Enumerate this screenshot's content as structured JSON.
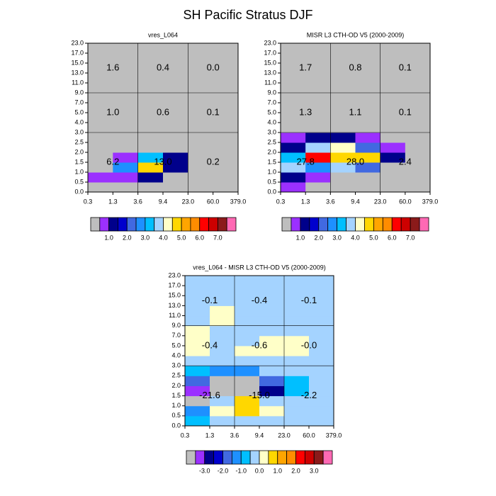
{
  "title": "SH Pacific Stratus DJF",
  "chart_data": [
    {
      "type": "heatmap",
      "title": "vres_L064",
      "xticks": [
        0.3,
        1.3,
        3.6,
        9.4,
        {
          "value": 23,
          "label": "23.0"
        },
        {
          "value": 60,
          "label": "60.0"
        },
        {
          "value": 379,
          "label": "379.0"
        }
      ],
      "yticks": [
        {
          "value": 0,
          "label": "0.0"
        },
        0.5,
        {
          "value": 1,
          "label": "1.0"
        },
        1.5,
        {
          "value": 2,
          "label": "2.0"
        },
        2.5,
        {
          "value": 3,
          "label": "3.0"
        },
        {
          "value": 4,
          "label": "4.0"
        },
        {
          "value": 5,
          "label": "5.0"
        },
        {
          "value": 7,
          "label": "7.0"
        },
        {
          "value": 9,
          "label": "9.0"
        },
        {
          "value": 11,
          "label": "11.0"
        },
        {
          "value": 13,
          "label": "13.0"
        },
        {
          "value": 15,
          "label": "15.0"
        },
        {
          "value": 17,
          "label": "17.0"
        },
        {
          "value": 23,
          "label": "23.0"
        }
      ],
      "values": [
        [
          0,
          0,
          0,
          0,
          0,
          0
        ],
        [
          0.75,
          0.75,
          1.25,
          0,
          0,
          0
        ],
        [
          0,
          2.75,
          4.75,
          1.25,
          0,
          0
        ],
        [
          0,
          0.75,
          3.25,
          1.25,
          0,
          0
        ],
        [
          0,
          0,
          0,
          0,
          0,
          0
        ],
        [
          0,
          0,
          0,
          0,
          0,
          0
        ],
        [
          0,
          0,
          0,
          0,
          0,
          0
        ],
        [
          0,
          0,
          0,
          0,
          0,
          0
        ],
        [
          0,
          0,
          0,
          0,
          0,
          0
        ],
        [
          0,
          0,
          0,
          0,
          0,
          0
        ],
        [
          0,
          0,
          0,
          0,
          0,
          0
        ],
        [
          0,
          0,
          0,
          0,
          0,
          0
        ],
        [
          0,
          0,
          0,
          0,
          0,
          0
        ],
        [
          0,
          0,
          0,
          0,
          0,
          0
        ],
        [
          0,
          0,
          0,
          0,
          0,
          0
        ]
      ],
      "block_values": [
        [
          {
            "value": 6.2,
            "label": "6.2"
          },
          {
            "value": 13,
            "label": "13.0"
          },
          {
            "value": 0.2,
            "label": "0.2"
          }
        ],
        [
          {
            "value": 1,
            "label": "1.0"
          },
          {
            "value": 0.6,
            "label": "0.6"
          },
          {
            "value": 0.1,
            "label": "0.1"
          }
        ],
        [
          {
            "value": 1.6,
            "label": "1.6"
          },
          {
            "value": 0.4,
            "label": "0.4"
          },
          {
            "value": 0,
            "label": "0.0"
          }
        ]
      ],
      "colorbar": {
        "colors": [
          "#bebebe",
          "#9b30ff",
          "#00008b",
          "#0000cd",
          "#4169e1",
          "#1e90ff",
          "#00bfff",
          "#a4d3ff",
          "#ffffc8",
          "#ffd700",
          "#ffa500",
          "#ff8c00",
          "#ff0000",
          "#cd0000",
          "#8b1a1a",
          "#ff69b4"
        ],
        "levels": [
          0.5,
          1,
          1.5,
          2,
          2.5,
          3,
          3.5,
          4,
          4.5,
          5,
          5.5,
          6,
          6.5,
          7,
          7.5
        ],
        "ticks": [
          {
            "value": 1,
            "label": "1.0"
          },
          {
            "value": 2,
            "label": "2.0"
          },
          {
            "value": 3,
            "label": "3.0"
          },
          {
            "value": 4,
            "label": "4.0"
          },
          {
            "value": 5,
            "label": "5.0"
          },
          {
            "value": 6,
            "label": "6.0"
          },
          {
            "value": 7,
            "label": "7.0"
          }
        ]
      }
    },
    {
      "type": "heatmap",
      "title": "MISR L3 CTH-OD V5 (2000-2009)",
      "xticks": [
        0.3,
        1.3,
        3.6,
        9.4,
        {
          "value": 23,
          "label": "23.0"
        },
        {
          "value": 60,
          "label": "60.0"
        },
        {
          "value": 379,
          "label": "379.0"
        }
      ],
      "yticks": [
        {
          "value": 0,
          "label": "0.0"
        },
        0.5,
        {
          "value": 1,
          "label": "1.0"
        },
        1.5,
        {
          "value": 2,
          "label": "2.0"
        },
        2.5,
        {
          "value": 3,
          "label": "3.0"
        },
        {
          "value": 4,
          "label": "4.0"
        },
        {
          "value": 5,
          "label": "5.0"
        },
        {
          "value": 7,
          "label": "7.0"
        },
        {
          "value": 9,
          "label": "9.0"
        },
        {
          "value": 11,
          "label": "11.0"
        },
        {
          "value": 13,
          "label": "13.0"
        },
        {
          "value": 15,
          "label": "15.0"
        },
        {
          "value": 17,
          "label": "17.0"
        },
        {
          "value": 23,
          "label": "23.0"
        }
      ],
      "values": [
        [
          0.75,
          0,
          0,
          0,
          0,
          0
        ],
        [
          1.25,
          0.75,
          0,
          0,
          0,
          0
        ],
        [
          3.75,
          2.75,
          3.75,
          2.25,
          0,
          0
        ],
        [
          3.25,
          6.25,
          4.75,
          4.75,
          1.25,
          0
        ],
        [
          1.25,
          3.75,
          4.25,
          2.25,
          0.75,
          0
        ],
        [
          0.75,
          1.25,
          1.25,
          0.75,
          0,
          0
        ],
        [
          0,
          0,
          0,
          0,
          0,
          0
        ],
        [
          0,
          0,
          0,
          0,
          0,
          0
        ],
        [
          0,
          0,
          0,
          0,
          0,
          0
        ],
        [
          0,
          0,
          0,
          0,
          0,
          0
        ],
        [
          0,
          0,
          0,
          0,
          0,
          0
        ],
        [
          0,
          0,
          0,
          0,
          0,
          0
        ],
        [
          0,
          0,
          0,
          0,
          0,
          0
        ],
        [
          0,
          0,
          0,
          0,
          0,
          0
        ],
        [
          0,
          0,
          0,
          0,
          0,
          0
        ]
      ],
      "block_values": [
        [
          {
            "value": 27.8,
            "label": "27.8"
          },
          {
            "value": 28,
            "label": "28.0"
          },
          {
            "value": 2.4,
            "label": "2.4"
          }
        ],
        [
          {
            "value": 1.3,
            "label": "1.3"
          },
          {
            "value": 1.1,
            "label": "1.1"
          },
          {
            "value": 0.1,
            "label": "0.1"
          }
        ],
        [
          {
            "value": 1.7,
            "label": "1.7"
          },
          {
            "value": 0.8,
            "label": "0.8"
          },
          {
            "value": 0.1,
            "label": "0.1"
          }
        ]
      ],
      "colorbar": {
        "colors": [
          "#bebebe",
          "#9b30ff",
          "#00008b",
          "#0000cd",
          "#4169e1",
          "#1e90ff",
          "#00bfff",
          "#a4d3ff",
          "#ffffc8",
          "#ffd700",
          "#ffa500",
          "#ff8c00",
          "#ff0000",
          "#cd0000",
          "#8b1a1a",
          "#ff69b4"
        ],
        "levels": [
          0.5,
          1,
          1.5,
          2,
          2.5,
          3,
          3.5,
          4,
          4.5,
          5,
          5.5,
          6,
          6.5,
          7,
          7.5
        ],
        "ticks": [
          {
            "value": 1,
            "label": "1.0"
          },
          {
            "value": 2,
            "label": "2.0"
          },
          {
            "value": 3,
            "label": "3.0"
          },
          {
            "value": 4,
            "label": "4.0"
          },
          {
            "value": 5,
            "label": "5.0"
          },
          {
            "value": 6,
            "label": "6.0"
          },
          {
            "value": 7,
            "label": "7.0"
          }
        ]
      }
    },
    {
      "type": "heatmap",
      "title": "vres_L064 - MISR L3 CTH-OD V5 (2000-2009)",
      "xticks": [
        0.3,
        1.3,
        3.6,
        9.4,
        {
          "value": 23,
          "label": "23.0"
        },
        {
          "value": 60,
          "label": "60.0"
        },
        {
          "value": 379,
          "label": "379.0"
        }
      ],
      "yticks": [
        {
          "value": 0,
          "label": "0.0"
        },
        0.5,
        {
          "value": 1,
          "label": "1.0"
        },
        1.5,
        {
          "value": 2,
          "label": "2.0"
        },
        2.5,
        {
          "value": 3,
          "label": "3.0"
        },
        {
          "value": 4,
          "label": "4.0"
        },
        {
          "value": 5,
          "label": "5.0"
        },
        {
          "value": 7,
          "label": "7.0"
        },
        {
          "value": 9,
          "label": "9.0"
        },
        {
          "value": 11,
          "label": "11.0"
        },
        {
          "value": 13,
          "label": "13.0"
        },
        {
          "value": 15,
          "label": "15.0"
        },
        {
          "value": 17,
          "label": "17.0"
        },
        {
          "value": 23,
          "label": "23.0"
        }
      ],
      "values": [
        [
          -0.75,
          -0.1,
          -0.1,
          -0.1,
          -0.1,
          -0.1
        ],
        [
          -1.25,
          0.25,
          0.75,
          0.25,
          -0.1,
          -0.1
        ],
        [
          -4,
          -0.1,
          0.75,
          -0.1,
          -0.1,
          -0.1
        ],
        [
          -3.25,
          -4,
          -4,
          -2.75,
          -0.75,
          -0.1
        ],
        [
          -1.75,
          -4,
          -4,
          -1.75,
          -0.75,
          -0.1
        ],
        [
          -0.75,
          -1.25,
          -1.25,
          -0.1,
          -0.1,
          -0.1
        ],
        [
          -0.1,
          -0.1,
          -0.1,
          -0.1,
          -0.1,
          -0.1
        ],
        [
          0.25,
          -0.1,
          0.25,
          0.25,
          0.25,
          -0.1
        ],
        [
          0.25,
          -0.1,
          -0.1,
          0.25,
          0.25,
          -0.1
        ],
        [
          0.25,
          -0.1,
          -0.1,
          -0.1,
          -0.1,
          -0.1
        ],
        [
          -0.1,
          0.25,
          -0.1,
          -0.1,
          -0.1,
          -0.1
        ],
        [
          -0.1,
          0.25,
          -0.1,
          -0.1,
          -0.1,
          -0.1
        ],
        [
          -0.1,
          -0.1,
          -0.1,
          -0.1,
          -0.1,
          -0.1
        ],
        [
          -0.1,
          -0.1,
          -0.1,
          -0.1,
          -0.1,
          -0.1
        ],
        [
          -0.1,
          -0.1,
          -0.1,
          -0.1,
          -0.1,
          -0.1
        ]
      ],
      "block_values": [
        [
          {
            "value": -21.6,
            "label": "-21.6"
          },
          {
            "value": -15,
            "label": "-15.0"
          },
          {
            "value": -2.2,
            "label": "-2.2"
          }
        ],
        [
          {
            "value": -0.4,
            "label": "-0.4"
          },
          {
            "value": -0.6,
            "label": "-0.6"
          },
          {
            "value": 0,
            "label": "-0.0"
          }
        ],
        [
          {
            "value": -0.1,
            "label": "-0.1"
          },
          {
            "value": -0.4,
            "label": "-0.4"
          },
          {
            "value": -0.1,
            "label": "-0.1"
          }
        ]
      ],
      "colorbar": {
        "colors": [
          "#bebebe",
          "#9b30ff",
          "#00008b",
          "#0000cd",
          "#4169e1",
          "#1e90ff",
          "#00bfff",
          "#a4d3ff",
          "#ffffc8",
          "#ffd700",
          "#ffa500",
          "#ff8c00",
          "#ff0000",
          "#cd0000",
          "#8b1a1a",
          "#ff69b4"
        ],
        "levels": [
          -3.5,
          -3,
          -2.5,
          -2,
          -1.5,
          -1,
          -0.5,
          0,
          0.5,
          1,
          1.5,
          2,
          2.5,
          3,
          3.5
        ],
        "ticks": [
          {
            "value": -3,
            "label": "-3.0"
          },
          {
            "value": -2,
            "label": "-2.0"
          },
          {
            "value": -1,
            "label": "-1.0"
          },
          {
            "value": 0,
            "label": "0.0"
          },
          {
            "value": 1,
            "label": "1.0"
          },
          {
            "value": 2,
            "label": "2.0"
          },
          {
            "value": 3,
            "label": "3.0"
          }
        ]
      }
    }
  ]
}
